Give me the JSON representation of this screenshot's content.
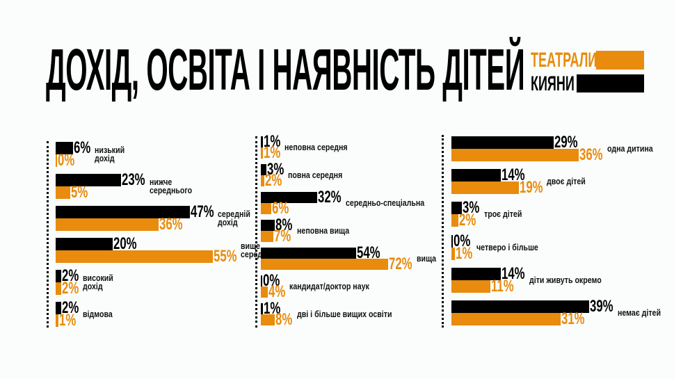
{
  "title": "ДОХІД, ОСВІТА І НАЯВНІСТЬ ДІТЕЙ",
  "colors": {
    "teatraly": "#e98b0c",
    "kyiany": "#000000",
    "background": "#fbfdfd"
  },
  "legend": [
    {
      "label": "ТЕАТРАЛИ",
      "color": "#e98b0c"
    },
    {
      "label": "КИЯНИ",
      "color": "#000000"
    }
  ],
  "chart_data": [
    {
      "type": "bar",
      "orientation": "horizontal",
      "title": "",
      "series": [
        {
          "name": "КИЯНИ",
          "color": "#000000"
        },
        {
          "name": "ТЕАТРАЛИ",
          "color": "#e98b0c"
        }
      ],
      "categories": [
        "низький\nдохід",
        "нижче\nсереднього",
        "середній\nдохід",
        "вище\nсереднього",
        "високий\nдохід",
        "відмова"
      ],
      "values": [
        [
          6,
          0
        ],
        [
          23,
          5
        ],
        [
          47,
          36
        ],
        [
          20,
          55
        ],
        [
          2,
          2
        ],
        [
          2,
          1
        ]
      ],
      "labels": [
        [
          "6%",
          "0%"
        ],
        [
          "23%",
          "5%"
        ],
        [
          "47%",
          "36%"
        ],
        [
          "20%",
          "55%"
        ],
        [
          "2%",
          "2%"
        ],
        [
          "2%",
          "1%"
        ]
      ]
    },
    {
      "type": "bar",
      "orientation": "horizontal",
      "title": "",
      "series": [
        {
          "name": "КИЯНИ",
          "color": "#000000"
        },
        {
          "name": "ТЕАТРАЛИ",
          "color": "#e98b0c"
        }
      ],
      "categories": [
        "неповна середня",
        "повна середня",
        "середньо-спеціальна",
        "неповна вища",
        "вища",
        "кандидат/доктор наук",
        "дві і більше вищих освіти"
      ],
      "values": [
        [
          1,
          1
        ],
        [
          3,
          2
        ],
        [
          32,
          6
        ],
        [
          8,
          7
        ],
        [
          54,
          72
        ],
        [
          0,
          4
        ],
        [
          1,
          8
        ]
      ],
      "labels": [
        [
          "1%",
          "1%"
        ],
        [
          "3%",
          "2%"
        ],
        [
          "32%",
          "6%"
        ],
        [
          "8%",
          "7%"
        ],
        [
          "54%",
          "72%"
        ],
        [
          "0%",
          "4%"
        ],
        [
          "1%",
          "8%"
        ]
      ]
    },
    {
      "type": "bar",
      "orientation": "horizontal",
      "title": "",
      "series": [
        {
          "name": "КИЯНИ",
          "color": "#000000"
        },
        {
          "name": "ТЕАТРАЛИ",
          "color": "#e98b0c"
        }
      ],
      "categories": [
        "одна дитина",
        "двоє дітей",
        "троє дітей",
        "четверо і більше",
        "діти живуть окремо",
        "немає дітей"
      ],
      "values": [
        [
          29,
          36
        ],
        [
          14,
          19
        ],
        [
          3,
          2
        ],
        [
          0,
          1
        ],
        [
          14,
          11
        ],
        [
          39,
          31
        ]
      ],
      "labels": [
        [
          "29%",
          "36%"
        ],
        [
          "14%",
          "19%"
        ],
        [
          "3%",
          "2%"
        ],
        [
          "0%",
          "1%"
        ],
        [
          "14%",
          "11%"
        ],
        [
          "39%",
          "31%"
        ]
      ]
    }
  ]
}
